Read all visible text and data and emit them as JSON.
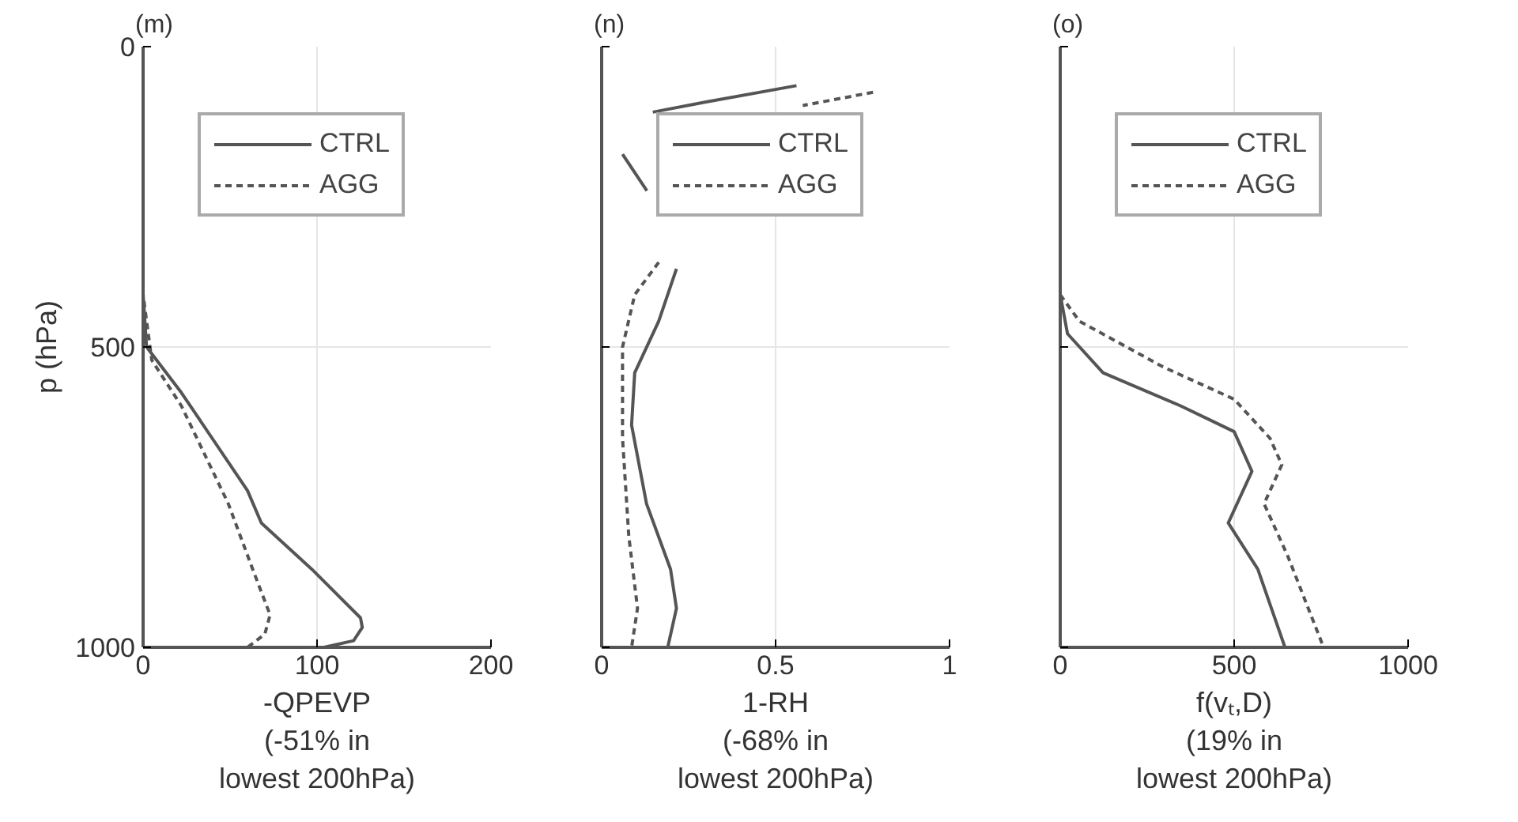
{
  "chart_data": [
    {
      "type": "line",
      "title": "(m)",
      "xlabel": "-QPEVP\n(-51% in\nlowest 200hPa)",
      "ylabel": "p (hPa)",
      "orientation": "horizontal",
      "xlim": [
        0,
        200
      ],
      "xticks": [
        0,
        100,
        200
      ],
      "ylim": [
        1000,
        0
      ],
      "yticks": [
        0,
        500,
        1000
      ],
      "grid": true,
      "legend": "top right",
      "series": [
        {
          "name": "CTRL",
          "color": "#555555",
          "line_style": "solid",
          "x": [
            0,
            413,
            500,
            576,
            739,
            793,
            870,
            951,
            967,
            989,
            1000
          ],
          "values": [
            0,
            0,
            2,
            22,
            60,
            68,
            97,
            125,
            126,
            121,
            104
          ]
        },
        {
          "name": "AGG",
          "color": "#555555",
          "line_style": "dashed",
          "x": [
            0,
            413,
            522,
            598,
            761,
            870,
            946,
            978,
            1000
          ],
          "values": [
            0,
            0,
            5,
            22,
            49,
            63,
            73,
            70,
            60
          ]
        }
      ]
    },
    {
      "type": "line",
      "title": "(n)",
      "xlabel": "1-RH\n(-68% in\nlowest 200hPa)",
      "orientation": "horizontal",
      "xlim": [
        0,
        1
      ],
      "xticks": [
        0,
        0.5,
        1
      ],
      "ylim": [
        1000,
        0
      ],
      "yticks": [
        0,
        500,
        1000
      ],
      "tick_labels": "x",
      "grid": true,
      "legend": "top right",
      "series": [
        {
          "name": "CTRL",
          "color": "#555555",
          "line_style": "solid",
          "x": [
            65,
            92,
            109,
            140,
            179,
            240,
            300,
            370,
            457,
            543,
            630,
            761,
            870,
            935,
            1000
          ],
          "values": [
            0.56,
            0.3,
            0.147,
            null,
            0.06,
            0.13,
            null,
            0.215,
            0.164,
            0.095,
            0.086,
            0.129,
            0.198,
            0.215,
            0.19
          ]
        },
        {
          "name": "AGG",
          "color": "#555555",
          "line_style": "dashed",
          "x": [
            76,
            98,
            200,
            359,
            413,
            500,
            652,
            815,
            935,
            1000
          ],
          "values": [
            0.78,
            0.578,
            null,
            0.164,
            0.095,
            0.06,
            0.06,
            0.078,
            0.103,
            0.086
          ]
        }
      ]
    },
    {
      "type": "line",
      "title": "(o)",
      "xlabel": "f(vₜ,D)\n(19% in\nlowest 200hPa)",
      "orientation": "horizontal",
      "xlim": [
        0,
        1000
      ],
      "xticks": [
        0,
        500,
        1000
      ],
      "ylim": [
        1000,
        0
      ],
      "yticks": [
        0,
        500,
        1000
      ],
      "tick_labels": "x",
      "grid": true,
      "legend": "top right",
      "series": [
        {
          "name": "CTRL",
          "color": "#555555",
          "line_style": "solid",
          "x": [
            65,
            413,
            478,
            543,
            598,
            641,
            707,
            793,
            870,
            1000
          ],
          "values": [
            0,
            0,
            21,
            123,
            346,
            500,
            551,
            483,
            568,
            646
          ]
        },
        {
          "name": "AGG",
          "color": "#555555",
          "line_style": "dashed",
          "x": [
            413,
            457,
            533,
            587,
            652,
            696,
            761,
            848,
            1000
          ],
          "values": [
            0,
            55,
            295,
            500,
            603,
            637,
            586,
            654,
            757
          ]
        }
      ]
    }
  ]
}
